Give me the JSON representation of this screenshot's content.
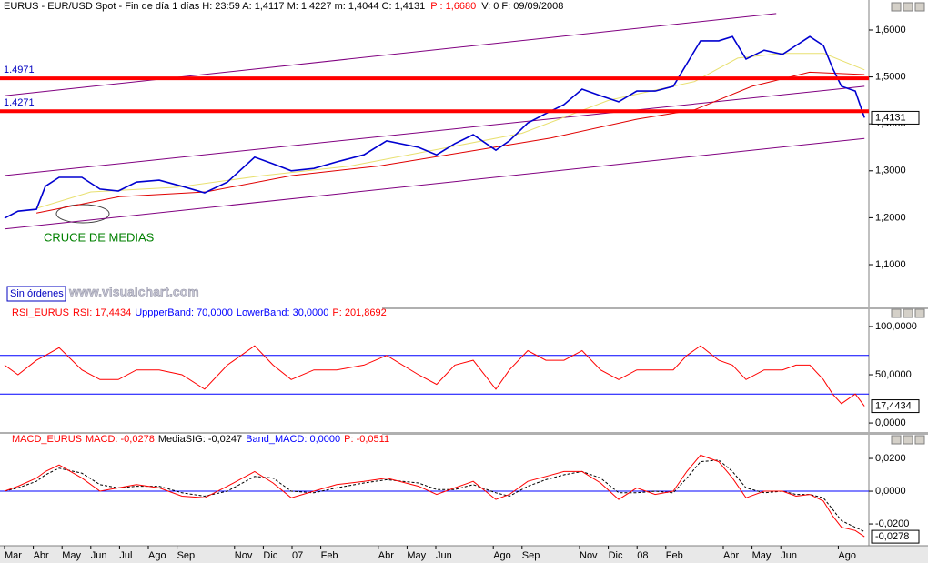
{
  "window": {
    "button": "Sin órdenes",
    "watermark": "www.visualchart.com",
    "annotation": "CRUCE DE MEDIAS"
  },
  "x_axis": {
    "xlim": [
      -0.158,
      30.063
    ],
    "xticks": [
      {
        "value": 0,
        "label": "Mar"
      },
      {
        "value": 1,
        "label": "Abr"
      },
      {
        "value": 2,
        "label": "May"
      },
      {
        "value": 3,
        "label": "Jun"
      },
      {
        "value": 4,
        "label": "Jul"
      },
      {
        "value": 5,
        "label": "Ago"
      },
      {
        "value": 6,
        "label": "Sep"
      },
      {
        "value": 8,
        "label": "Nov"
      },
      {
        "value": 9,
        "label": "Dic"
      },
      {
        "value": 10,
        "label": "07"
      },
      {
        "value": 11,
        "label": "Feb"
      },
      {
        "value": 13,
        "label": "Abr"
      },
      {
        "value": 14,
        "label": "May"
      },
      {
        "value": 15,
        "label": "Jun"
      },
      {
        "value": 17,
        "label": "Ago"
      },
      {
        "value": 18,
        "label": "Sep"
      },
      {
        "value": 20,
        "label": "Nov"
      },
      {
        "value": 21,
        "label": "Dic"
      },
      {
        "value": 22,
        "label": "08"
      },
      {
        "value": 23,
        "label": "Feb"
      },
      {
        "value": 25,
        "label": "Abr"
      },
      {
        "value": 26,
        "label": "May"
      },
      {
        "value": 27,
        "label": "Jun"
      },
      {
        "value": 29,
        "label": "Ago"
      }
    ],
    "x": [
      0,
      0.47,
      1.11,
      1.42,
      1.9,
      2.69,
      3.32,
      3.96,
      4.59,
      5.38,
      6.17,
      6.96,
      7.75,
      8.7,
      9.34,
      9.97,
      10.76,
      11.55,
      12.5,
      13.29,
      14.4,
      15.03,
      15.66,
      16.3,
      17.09,
      17.56,
      18.2,
      18.83,
      19.46,
      20.09,
      20.73,
      21.36,
      21.99,
      22.63,
      23.26,
      23.73,
      24.21,
      24.84,
      25.32,
      25.79,
      26.42,
      27.06,
      27.53,
      28.01,
      28.48,
      28.8,
      29.11,
      29.59,
      29.91
    ]
  },
  "chart_data": [
    {
      "type": "line",
      "header": [
        {
          "text": "EURUS - EUR/USD Spot - Fin de día 1 días H: 23:59 A: 1,4117 M: 1,4227 m: 1,4044 C: 1,4131",
          "color": "#000000"
        },
        {
          "text": "P : 1,6680",
          "color": "#ff0000"
        },
        {
          "text": "V: 0 F: 09/09/2008",
          "color": "#000000"
        }
      ],
      "ylim": [
        1.0089,
        1.6368
      ],
      "yticks": [
        {
          "value": 1.1,
          "label": "1,1000"
        },
        {
          "value": 1.2,
          "label": "1,2000"
        },
        {
          "value": 1.3,
          "label": "1,3000"
        },
        {
          "value": 1.4,
          "label": "1,4000"
        },
        {
          "value": 1.5,
          "label": "1,5000"
        },
        {
          "value": 1.6,
          "label": "1,6000"
        }
      ],
      "last": {
        "value": 1.4131,
        "label": "1,4131"
      },
      "trendlines": [
        {
          "x": [
            0,
            26.84
          ],
          "values": [
            1.46,
            1.635
          ],
          "color": "#800080"
        },
        {
          "x": [
            0,
            29.91
          ],
          "values": [
            1.29,
            1.48
          ],
          "color": "#800080"
        },
        {
          "x": [
            0,
            29.91
          ],
          "values": [
            1.176,
            1.369
          ],
          "color": "#800080"
        }
      ],
      "levels": [
        {
          "value": 1.4971,
          "color": "#ff0000",
          "label_color": "#0000c0"
        },
        {
          "value": 1.4271,
          "color": "#ff0000",
          "label_color": "#0000c0"
        }
      ],
      "series": [
        {
          "color": "#e8e070",
          "x": [
            1.11,
            3,
            6,
            9,
            12,
            15,
            18,
            21,
            24,
            25.5,
            27,
            28.5,
            29.91
          ],
          "values": [
            1.22,
            1.255,
            1.265,
            1.29,
            1.31,
            1.345,
            1.38,
            1.45,
            1.49,
            1.54,
            1.55,
            1.55,
            1.515
          ]
        },
        {
          "color": "#e00000",
          "x": [
            1.11,
            4,
            7,
            10,
            13,
            16,
            19,
            22,
            24,
            26,
            28,
            29.91
          ],
          "values": [
            1.21,
            1.245,
            1.255,
            1.29,
            1.31,
            1.34,
            1.37,
            1.41,
            1.43,
            1.48,
            1.51,
            1.505
          ]
        },
        {
          "color": "#0000d0",
          "values": [
            1.199,
            1.214,
            1.218,
            1.267,
            1.286,
            1.286,
            1.261,
            1.257,
            1.276,
            1.28,
            1.267,
            1.253,
            1.276,
            1.329,
            1.315,
            1.3,
            1.305,
            1.319,
            1.334,
            1.364,
            1.35,
            1.334,
            1.358,
            1.377,
            1.344,
            1.364,
            1.402,
            1.422,
            1.441,
            1.474,
            1.46,
            1.447,
            1.47,
            1.47,
            1.48,
            1.528,
            1.577,
            1.577,
            1.586,
            1.538,
            1.557,
            1.548,
            1.567,
            1.586,
            1.567,
            1.519,
            1.48,
            1.47,
            1.4131
          ]
        }
      ]
    },
    {
      "type": "line",
      "header": [
        {
          "text": "RSI_EURUS",
          "color": "#ff0000"
        },
        {
          "text": "RSI: 17,4434",
          "color": "#ff0000"
        },
        {
          "text": "UppperBand: 70,0000",
          "color": "#0000ff"
        },
        {
          "text": "LowerBand: 30,0000",
          "color": "#0000ff"
        },
        {
          "text": "P: 201,8692",
          "color": "#ff0000"
        }
      ],
      "ylim": [
        -10.3,
        107.5
      ],
      "yticks": [
        {
          "value": 0,
          "label": "0,0000"
        },
        {
          "value": 50,
          "label": "50,0000"
        },
        {
          "value": 100,
          "label": "100,0000"
        }
      ],
      "last": {
        "value": 17.4434,
        "label": "17,4434"
      },
      "bands": [
        {
          "value": 70,
          "color": "#0000ff"
        },
        {
          "value": 30,
          "color": "#0000ff"
        }
      ],
      "series": [
        {
          "color": "#ff0000",
          "values": [
            60,
            50,
            65,
            70,
            78,
            55,
            45,
            45,
            55,
            55,
            50,
            35,
            60,
            80,
            60,
            45,
            55,
            55,
            60,
            70,
            50,
            40,
            60,
            65,
            35,
            55,
            75,
            65,
            65,
            75,
            55,
            45,
            55,
            55,
            55,
            70,
            80,
            65,
            60,
            45,
            55,
            55,
            60,
            60,
            45,
            30,
            20,
            30,
            17.4434
          ]
        }
      ]
    },
    {
      "type": "line",
      "header": [
        {
          "text": "MACD_EURUS",
          "color": "#ff0000"
        },
        {
          "text": "MACD: -0,0278",
          "color": "#ff0000"
        },
        {
          "text": "MediaSIG: -0,0247",
          "color": "#000000"
        },
        {
          "text": "Band_MACD: 0,0000",
          "color": "#0000ff"
        },
        {
          "text": "P: -0,0511",
          "color": "#ff0000"
        }
      ],
      "ylim": [
        -0.0333,
        0.0278
      ],
      "yticks": [
        {
          "value": -0.02,
          "label": "-0,0200"
        },
        {
          "value": 0,
          "label": "0,0000"
        },
        {
          "value": 0.02,
          "label": "0,0200"
        }
      ],
      "last": {
        "value": -0.0278,
        "label": "-0,0278"
      },
      "bands": [
        {
          "value": 0,
          "color": "#0000ff"
        }
      ],
      "series": [
        {
          "color": "#000000",
          "dash": true,
          "values": [
            0,
            0.002,
            0.006,
            0.01,
            0.014,
            0.011,
            0.004,
            0.002,
            0.003,
            0.003,
            -0.001,
            -0.003,
            0,
            0.009,
            0.008,
            0,
            -0.001,
            0.002,
            0.005,
            0.007,
            0.005,
            0.001,
            0.001,
            0.004,
            -0.001,
            -0.003,
            0.003,
            0.007,
            0.01,
            0.012,
            0.008,
            -0.001,
            -0.001,
            0,
            -0.001,
            0.008,
            0.018,
            0.019,
            0.012,
            0.002,
            -0.001,
            0,
            -0.002,
            -0.002,
            -0.004,
            -0.011,
            -0.018,
            -0.022,
            -0.0247
          ]
        },
        {
          "color": "#ff0000",
          "values": [
            0,
            0.003,
            0.008,
            0.012,
            0.016,
            0.008,
            0,
            0.002,
            0.004,
            0.002,
            -0.003,
            -0.004,
            0.003,
            0.012,
            0.005,
            -0.004,
            0,
            0.004,
            0.006,
            0.008,
            0.003,
            -0.002,
            0.002,
            0.006,
            -0.005,
            -0.002,
            0.006,
            0.009,
            0.012,
            0.012,
            0.005,
            -0.005,
            0.002,
            -0.002,
            0,
            0.012,
            0.022,
            0.018,
            0.008,
            -0.004,
            0,
            0,
            -0.003,
            -0.002,
            -0.006,
            -0.015,
            -0.022,
            -0.024,
            -0.0278
          ]
        }
      ]
    }
  ]
}
